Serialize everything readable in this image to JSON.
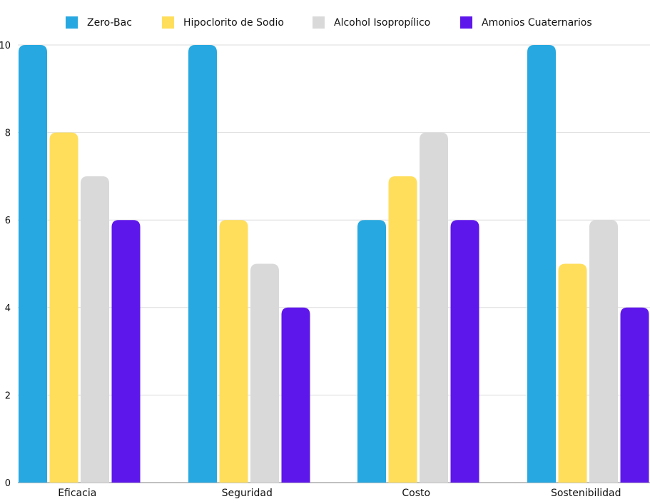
{
  "chart_data": {
    "type": "bar",
    "categories": [
      "Eficacia",
      "Seguridad",
      "Costo",
      "Sostenibilidad"
    ],
    "series": [
      {
        "name": "Zero-Bac",
        "color": "#27A8E0",
        "values": [
          10,
          10,
          6,
          10
        ]
      },
      {
        "name": "Hipoclorito de Sodio",
        "color": "#FFDE5C",
        "values": [
          8,
          6,
          7,
          5
        ]
      },
      {
        "name": "Alcohol Isopropílico",
        "color": "#D9D9D9",
        "values": [
          7,
          5,
          8,
          6
        ]
      },
      {
        "name": "Amonios Cuaternarios",
        "color": "#5E17EB",
        "values": [
          6,
          4,
          6,
          4
        ]
      }
    ],
    "yticks": [
      "0",
      "2",
      "4",
      "6",
      "8",
      "10"
    ],
    "ylim": [
      0,
      10
    ],
    "grid": true,
    "legend": "top"
  }
}
